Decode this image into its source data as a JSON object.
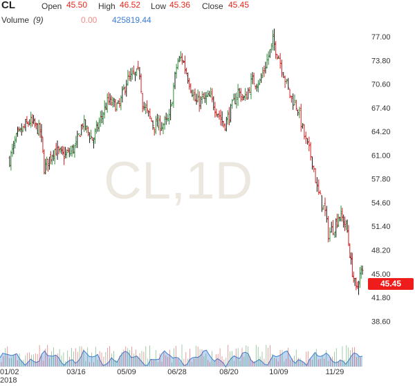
{
  "header": {
    "symbol": "CL",
    "open_label": "Open",
    "open_value": "45.50",
    "high_label": "High",
    "high_value": "46.52",
    "low_label": "Low",
    "low_value": "45.36",
    "close_label": "Close",
    "close_value": "45.45",
    "volume_label": "Volume",
    "volume_period": "(9)",
    "volume_value_a": "0.00",
    "volume_value_b": "425819.44"
  },
  "watermark": "CL,1D",
  "last_price_tag": "45.45",
  "colors": {
    "up": "#2e8b3a",
    "down": "#d11d1d",
    "neutral": "#111111",
    "volume_area": "#a9c8ef",
    "volume_line": "#3b7dd8",
    "price_tag": "#ef1c1c"
  },
  "chart_data": {
    "type": "candlestick",
    "y_ticks": [
      "77.00",
      "73.80",
      "70.60",
      "67.40",
      "64.20",
      "61.00",
      "57.80",
      "54.60",
      "51.40",
      "48.20",
      "45.00",
      "41.80",
      "38.60"
    ],
    "ylim": [
      36.2,
      78.6
    ],
    "x_ticks": [
      "01/02",
      "03/16",
      "05/09",
      "06/28",
      "08/20",
      "10/09",
      "11/29"
    ],
    "x_sublabel": "2018",
    "close_path": [
      [
        "01/02",
        60.4
      ],
      [
        "01/10",
        63.5
      ],
      [
        "01/24",
        65.6
      ],
      [
        "02/05",
        64.2
      ],
      [
        "02/09",
        59.2
      ],
      [
        "02/20",
        61.8
      ],
      [
        "03/01",
        61.0
      ],
      [
        "03/08",
        61.2
      ],
      [
        "03/16",
        62.3
      ],
      [
        "03/23",
        65.4
      ],
      [
        "04/03",
        63.0
      ],
      [
        "04/10",
        65.5
      ],
      [
        "04/19",
        68.3
      ],
      [
        "05/01",
        67.5
      ],
      [
        "05/09",
        71.1
      ],
      [
        "05/22",
        72.2
      ],
      [
        "05/25",
        67.9
      ],
      [
        "06/05",
        65.0
      ],
      [
        "06/15",
        65.2
      ],
      [
        "06/20",
        65.8
      ],
      [
        "06/28",
        73.5
      ],
      [
        "07/03",
        74.2
      ],
      [
        "07/17",
        68.1
      ],
      [
        "07/24",
        68.5
      ],
      [
        "08/01",
        68.8
      ],
      [
        "08/08",
        67.0
      ],
      [
        "08/15",
        65.0
      ],
      [
        "08/20",
        66.4
      ],
      [
        "08/29",
        69.6
      ],
      [
        "09/05",
        68.5
      ],
      [
        "09/12",
        71.0
      ],
      [
        "09/20",
        70.9
      ],
      [
        "10/01",
        75.3
      ],
      [
        "10/03",
        76.4
      ],
      [
        "10/09",
        74.3
      ],
      [
        "10/19",
        69.1
      ],
      [
        "10/26",
        67.5
      ],
      [
        "11/02",
        63.1
      ],
      [
        "11/09",
        60.1
      ],
      [
        "11/13",
        56.3
      ],
      [
        "11/20",
        53.4
      ],
      [
        "11/23",
        50.4
      ],
      [
        "11/29",
        51.4
      ],
      [
        "12/04",
        53.0
      ],
      [
        "12/07",
        52.6
      ],
      [
        "12/13",
        51.2
      ],
      [
        "12/18",
        46.2
      ],
      [
        "12/24",
        42.5
      ],
      [
        "12/27",
        44.6
      ],
      [
        "12/31",
        45.45
      ]
    ],
    "candle_count": 250,
    "volume": {
      "series_name": "Volume",
      "period": 9
    },
    "last_value": 45.45,
    "grid": false
  }
}
